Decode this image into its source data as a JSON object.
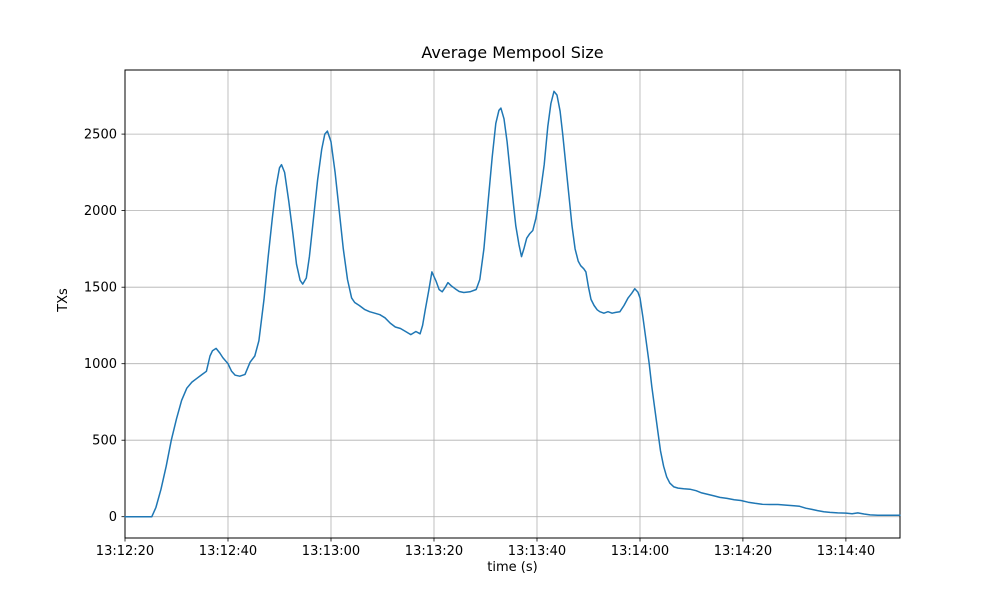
{
  "chart_data": {
    "type": "line",
    "title": "Average Mempool Size",
    "xlabel": "time (s)",
    "ylabel": "TXs",
    "x_tick_labels": [
      "13:12:20",
      "13:12:40",
      "13:13:00",
      "13:13:20",
      "13:13:40",
      "13:14:00",
      "13:14:20",
      "13:14:40"
    ],
    "x_tick_seconds": [
      0,
      20,
      40,
      60,
      80,
      100,
      120,
      140
    ],
    "y_ticks": [
      0,
      500,
      1000,
      1500,
      2000,
      2500
    ],
    "xlim": [
      0,
      150.5
    ],
    "ylim": [
      -139,
      2919
    ],
    "grid": true,
    "line_color": "#1f77b4",
    "grid_color": "#b0b0b0",
    "axis_color": "#000000",
    "series": [
      {
        "name": "Average Mempool Size",
        "points": [
          [
            0,
            0
          ],
          [
            2,
            0
          ],
          [
            4,
            0
          ],
          [
            5.2,
            0
          ],
          [
            6,
            60
          ],
          [
            7,
            180
          ],
          [
            8,
            330
          ],
          [
            9,
            500
          ],
          [
            10,
            640
          ],
          [
            11,
            760
          ],
          [
            12,
            840
          ],
          [
            13,
            880
          ],
          [
            14,
            905
          ],
          [
            15,
            930
          ],
          [
            15.8,
            950
          ],
          [
            16.5,
            1050
          ],
          [
            17,
            1085
          ],
          [
            17.7,
            1100
          ],
          [
            18.4,
            1070
          ],
          [
            19,
            1040
          ],
          [
            20,
            1000
          ],
          [
            20.7,
            950
          ],
          [
            21.4,
            925
          ],
          [
            22.3,
            918
          ],
          [
            23.3,
            930
          ],
          [
            24.3,
            1010
          ],
          [
            25.2,
            1050
          ],
          [
            26,
            1150
          ],
          [
            27,
            1420
          ],
          [
            27.8,
            1700
          ],
          [
            28.6,
            1950
          ],
          [
            29.3,
            2150
          ],
          [
            30,
            2280
          ],
          [
            30.4,
            2300
          ],
          [
            31,
            2250
          ],
          [
            31.8,
            2060
          ],
          [
            32.6,
            1850
          ],
          [
            33.3,
            1650
          ],
          [
            34,
            1545
          ],
          [
            34.5,
            1520
          ],
          [
            35.2,
            1560
          ],
          [
            35.8,
            1700
          ],
          [
            36.6,
            1950
          ],
          [
            37.4,
            2200
          ],
          [
            38.2,
            2400
          ],
          [
            38.8,
            2500
          ],
          [
            39.3,
            2520
          ],
          [
            40,
            2450
          ],
          [
            40.8,
            2250
          ],
          [
            41.6,
            2000
          ],
          [
            42.4,
            1750
          ],
          [
            43.2,
            1550
          ],
          [
            44,
            1430
          ],
          [
            44.6,
            1400
          ],
          [
            45.5,
            1380
          ],
          [
            46.5,
            1355
          ],
          [
            47.5,
            1340
          ],
          [
            48.5,
            1330
          ],
          [
            49.5,
            1320
          ],
          [
            50.5,
            1300
          ],
          [
            51.5,
            1265
          ],
          [
            52.5,
            1240
          ],
          [
            53.5,
            1230
          ],
          [
            54.5,
            1210
          ],
          [
            55.5,
            1190
          ],
          [
            56.5,
            1210
          ],
          [
            57.3,
            1195
          ],
          [
            57.8,
            1250
          ],
          [
            58.3,
            1350
          ],
          [
            59,
            1480
          ],
          [
            59.6,
            1600
          ],
          [
            60.4,
            1540
          ],
          [
            61,
            1485
          ],
          [
            61.6,
            1470
          ],
          [
            62.2,
            1500
          ],
          [
            62.7,
            1530
          ],
          [
            63.3,
            1510
          ],
          [
            64.1,
            1490
          ],
          [
            64.9,
            1472
          ],
          [
            65.8,
            1465
          ],
          [
            67,
            1470
          ],
          [
            68.2,
            1485
          ],
          [
            68.9,
            1550
          ],
          [
            69.7,
            1750
          ],
          [
            70.5,
            2050
          ],
          [
            71.3,
            2350
          ],
          [
            72,
            2570
          ],
          [
            72.6,
            2655
          ],
          [
            73,
            2670
          ],
          [
            73.6,
            2600
          ],
          [
            74.2,
            2450
          ],
          [
            74.8,
            2250
          ],
          [
            75.4,
            2050
          ],
          [
            75.9,
            1900
          ],
          [
            76.5,
            1780
          ],
          [
            77,
            1700
          ],
          [
            77.5,
            1755
          ],
          [
            78,
            1820
          ],
          [
            78.6,
            1850
          ],
          [
            79.2,
            1870
          ],
          [
            79.8,
            1950
          ],
          [
            80.6,
            2100
          ],
          [
            81.4,
            2300
          ],
          [
            82.1,
            2550
          ],
          [
            82.7,
            2700
          ],
          [
            83.3,
            2780
          ],
          [
            83.9,
            2755
          ],
          [
            84.5,
            2650
          ],
          [
            85,
            2500
          ],
          [
            85.6,
            2300
          ],
          [
            86.2,
            2100
          ],
          [
            86.8,
            1900
          ],
          [
            87.4,
            1750
          ],
          [
            88,
            1670
          ],
          [
            88.5,
            1640
          ],
          [
            89.1,
            1620
          ],
          [
            89.5,
            1600
          ],
          [
            90,
            1500
          ],
          [
            90.5,
            1420
          ],
          [
            91.1,
            1380
          ],
          [
            91.7,
            1352
          ],
          [
            92.2,
            1340
          ],
          [
            93,
            1330
          ],
          [
            93.8,
            1340
          ],
          [
            94.6,
            1330
          ],
          [
            95.3,
            1335
          ],
          [
            96.1,
            1340
          ],
          [
            96.9,
            1380
          ],
          [
            97.7,
            1430
          ],
          [
            98.4,
            1460
          ],
          [
            99,
            1490
          ],
          [
            99.6,
            1468
          ],
          [
            100,
            1430
          ],
          [
            100.6,
            1300
          ],
          [
            101.2,
            1150
          ],
          [
            101.8,
            1000
          ],
          [
            102.3,
            850
          ],
          [
            102.9,
            700
          ],
          [
            103.5,
            550
          ],
          [
            104,
            430
          ],
          [
            104.6,
            330
          ],
          [
            105.2,
            260
          ],
          [
            105.8,
            220
          ],
          [
            106.6,
            195
          ],
          [
            107.4,
            187
          ],
          [
            108.5,
            183
          ],
          [
            109.7,
            180
          ],
          [
            110.9,
            170
          ],
          [
            112,
            156
          ],
          [
            113.2,
            146
          ],
          [
            114.4,
            136
          ],
          [
            115.5,
            126
          ],
          [
            116.9,
            120
          ],
          [
            118.3,
            111
          ],
          [
            119.6,
            106
          ],
          [
            121,
            95
          ],
          [
            122.3,
            88
          ],
          [
            123.7,
            82
          ],
          [
            125.2,
            80
          ],
          [
            126.8,
            80
          ],
          [
            128.3,
            76
          ],
          [
            129.9,
            72
          ],
          [
            131,
            68
          ],
          [
            132.2,
            56
          ],
          [
            133.4,
            48
          ],
          [
            134.5,
            40
          ],
          [
            135.7,
            33
          ],
          [
            136.9,
            28
          ],
          [
            138.4,
            25
          ],
          [
            140,
            24
          ],
          [
            141.2,
            20
          ],
          [
            142.3,
            25
          ],
          [
            143.5,
            18
          ],
          [
            144.7,
            12
          ],
          [
            146.2,
            10
          ],
          [
            147.8,
            10
          ],
          [
            149.3,
            10
          ],
          [
            150.5,
            10
          ]
        ]
      }
    ]
  }
}
